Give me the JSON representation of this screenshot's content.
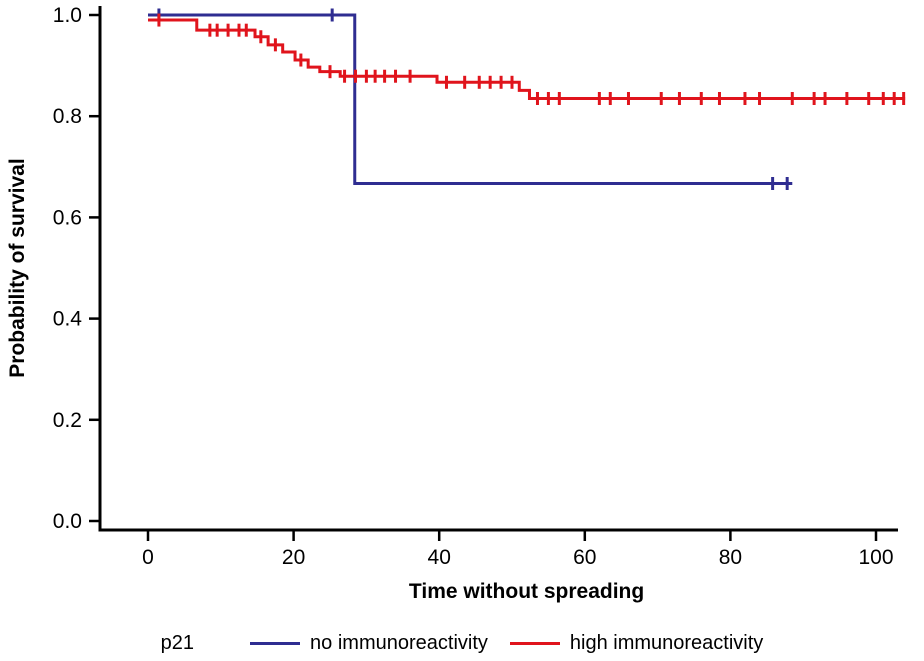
{
  "figure": {
    "background": "#ffffff"
  },
  "legend": {
    "title": "p21",
    "items": [
      {
        "label": "no immunoreactivity",
        "color": "#2f2d91"
      },
      {
        "label": "high immunoreactivity",
        "color": "#e0141c"
      }
    ]
  },
  "chart_data": {
    "type": "line",
    "subtype": "kaplan-meier-step-survival",
    "title": "",
    "xlabel": "Time without spreading",
    "ylabel": "Probability of survival",
    "xlim": [
      0,
      104
    ],
    "ylim": [
      0.0,
      1.0
    ],
    "xticks": [
      0,
      20,
      40,
      60,
      80,
      100
    ],
    "xtick_labels": [
      "0",
      "20",
      "40",
      "60",
      "80",
      "100"
    ],
    "yticks": [
      0.0,
      0.2,
      0.4,
      0.6,
      0.8,
      1.0
    ],
    "ytick_labels": [
      "0.0",
      "0.2",
      "0.4",
      "0.6",
      "0.8",
      "1.0"
    ],
    "grid": false,
    "legend_position": "bottom",
    "series": [
      {
        "name": "no immunoreactivity",
        "color": "#2f2d91",
        "step_points": [
          [
            0,
            1.0
          ],
          [
            28.4,
            0.667
          ]
        ],
        "end_time": 88.5,
        "censor_times": [
          1.5,
          25.3,
          85.8,
          87.8
        ]
      },
      {
        "name": "high immunoreactivity",
        "color": "#e0141c",
        "step_points": [
          [
            0,
            0.99
          ],
          [
            6.7,
            0.97
          ],
          [
            14.7,
            0.957
          ],
          [
            16.5,
            0.941
          ],
          [
            18.5,
            0.927
          ],
          [
            20.2,
            0.911
          ],
          [
            22,
            0.897
          ],
          [
            23.6,
            0.888
          ],
          [
            26.4,
            0.879
          ],
          [
            39.7,
            0.867
          ],
          [
            51,
            0.851
          ],
          [
            52.4,
            0.835
          ]
        ],
        "end_time": 104,
        "censor_times": [
          1.5,
          8.5,
          9.5,
          11,
          12.5,
          13.5,
          15.5,
          17.5,
          21,
          25,
          27,
          28.5,
          30,
          31.2,
          32.5,
          34,
          36,
          41,
          43.5,
          45.5,
          47,
          48.5,
          50,
          53.5,
          55,
          56.5,
          62,
          63.5,
          66,
          70.5,
          73,
          76,
          78.5,
          82,
          84,
          88.5,
          91.5,
          93,
          96,
          99,
          101,
          102.5,
          103.8
        ]
      }
    ]
  }
}
